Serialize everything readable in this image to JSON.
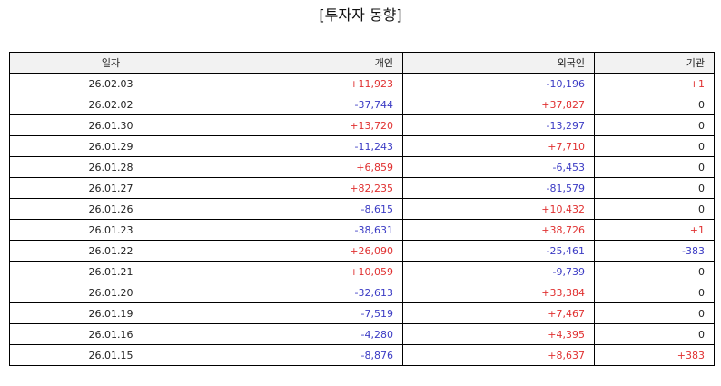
{
  "title": "[투자자 동향]",
  "colors": {
    "positive": "#e03131",
    "negative": "#3b3bc4",
    "neutral": "#222222",
    "header_bg": "#f2f2f2"
  },
  "columns": [
    "일자",
    "개인",
    "외국인",
    "기관"
  ],
  "rows": [
    {
      "date": "26.02.03",
      "individual": "+11,923",
      "foreign": "-10,196",
      "institution": "+1"
    },
    {
      "date": "26.02.02",
      "individual": "-37,744",
      "foreign": "+37,827",
      "institution": "0"
    },
    {
      "date": "26.01.30",
      "individual": "+13,720",
      "foreign": "-13,297",
      "institution": "0"
    },
    {
      "date": "26.01.29",
      "individual": "-11,243",
      "foreign": "+7,710",
      "institution": "0"
    },
    {
      "date": "26.01.28",
      "individual": "+6,859",
      "foreign": "-6,453",
      "institution": "0"
    },
    {
      "date": "26.01.27",
      "individual": "+82,235",
      "foreign": "-81,579",
      "institution": "0"
    },
    {
      "date": "26.01.26",
      "individual": "-8,615",
      "foreign": "+10,432",
      "institution": "0"
    },
    {
      "date": "26.01.23",
      "individual": "-38,631",
      "foreign": "+38,726",
      "institution": "+1"
    },
    {
      "date": "26.01.22",
      "individual": "+26,090",
      "foreign": "-25,461",
      "institution": "-383"
    },
    {
      "date": "26.01.21",
      "individual": "+10,059",
      "foreign": "-9,739",
      "institution": "0"
    },
    {
      "date": "26.01.20",
      "individual": "-32,613",
      "foreign": "+33,384",
      "institution": "0"
    },
    {
      "date": "26.01.19",
      "individual": "-7,519",
      "foreign": "+7,467",
      "institution": "0"
    },
    {
      "date": "26.01.16",
      "individual": "-4,280",
      "foreign": "+4,395",
      "institution": "0"
    },
    {
      "date": "26.01.15",
      "individual": "-8,876",
      "foreign": "+8,637",
      "institution": "+383"
    }
  ]
}
